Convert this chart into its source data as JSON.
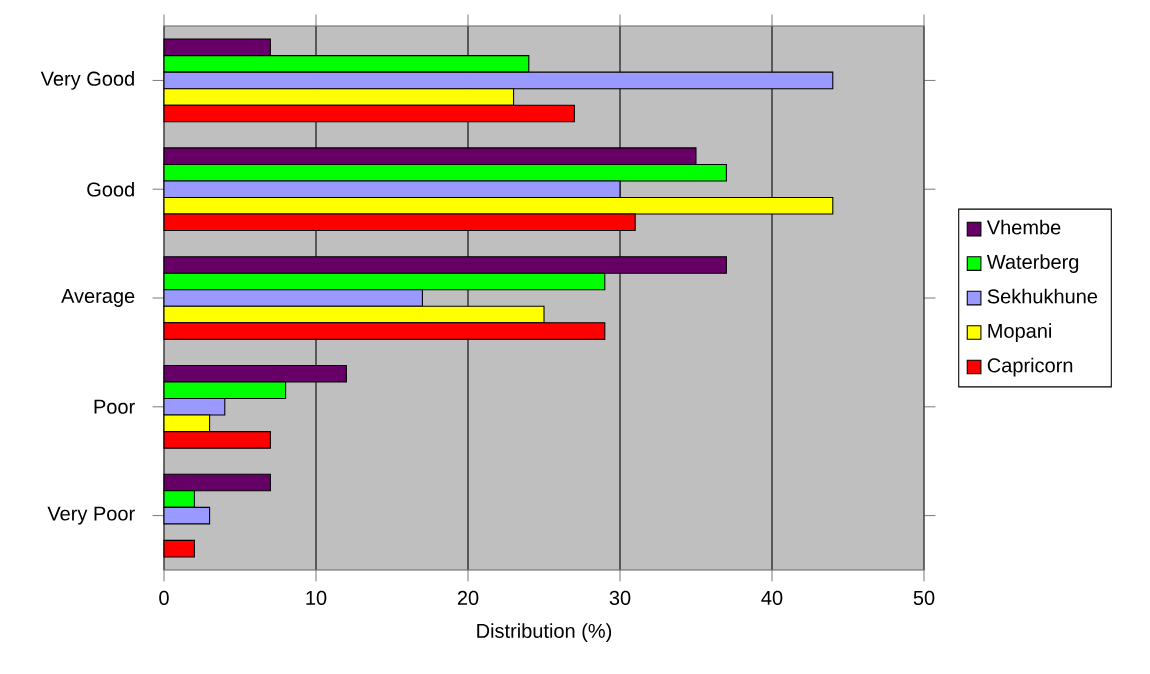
{
  "chart_data": {
    "type": "bar",
    "orientation": "horizontal",
    "categories": [
      "Very Good",
      "Good",
      "Average",
      "Poor",
      "Very Poor"
    ],
    "series": [
      {
        "name": "Vhembe",
        "color": "#660066",
        "values": [
          7,
          35,
          37,
          12,
          7
        ]
      },
      {
        "name": "Waterberg",
        "color": "#00ff00",
        "values": [
          24,
          37,
          29,
          8,
          2
        ]
      },
      {
        "name": "Sekhukhune",
        "color": "#9999ff",
        "values": [
          44,
          30,
          17,
          4,
          3
        ]
      },
      {
        "name": "Mopani",
        "color": "#ffff00",
        "values": [
          23,
          44,
          25,
          3,
          null
        ]
      },
      {
        "name": "Capricorn",
        "color": "#ff0000",
        "values": [
          27,
          31,
          29,
          7,
          2
        ]
      }
    ],
    "xlim": [
      0,
      50
    ],
    "xticks": [
      0,
      10,
      20,
      30,
      40,
      50
    ],
    "xlabel": "Distribution (%)",
    "grid": "x",
    "legend": "right"
  }
}
